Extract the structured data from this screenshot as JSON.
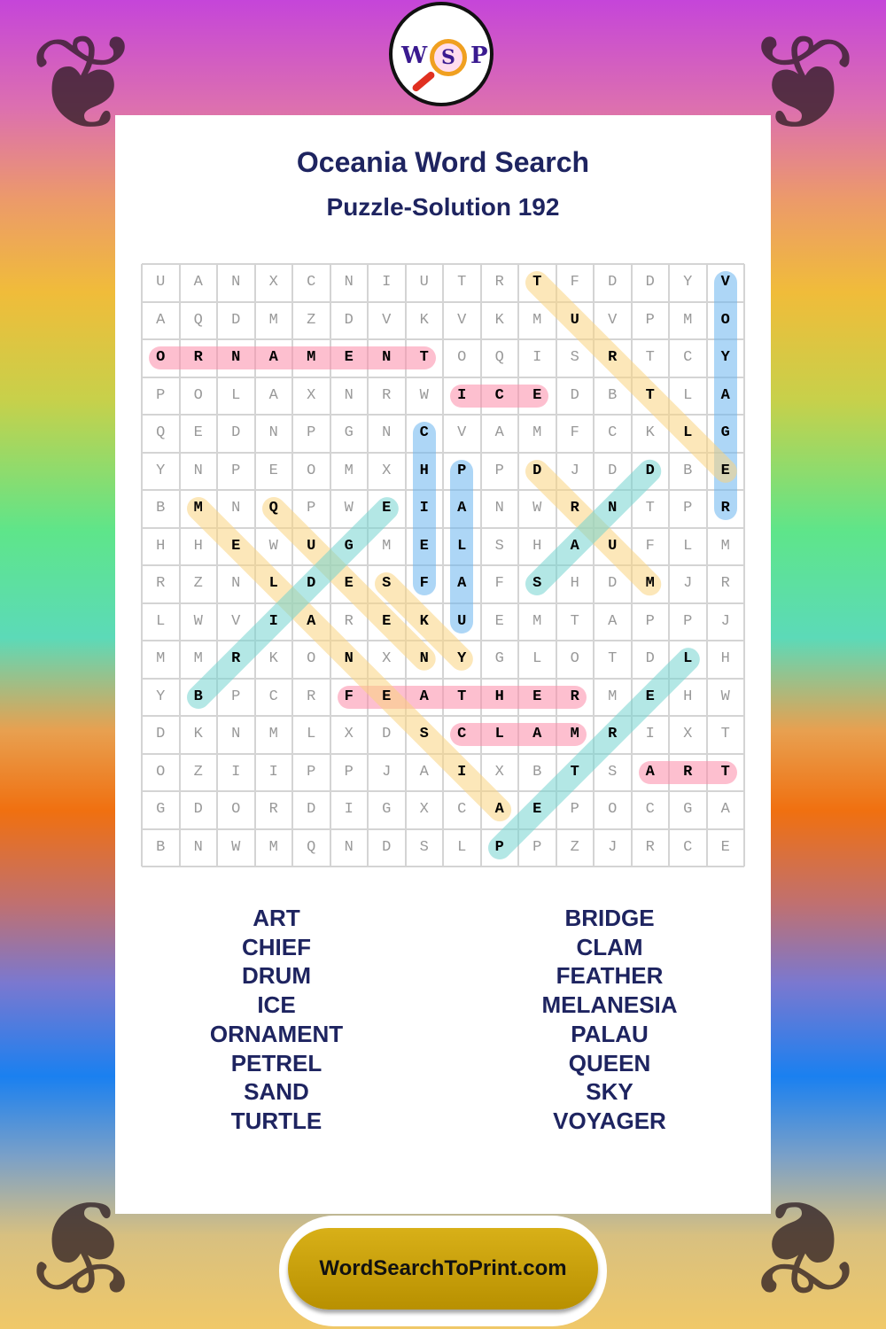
{
  "brand": {
    "logo_letters": [
      "W",
      "S",
      "P"
    ],
    "site": "WordSearchToPrint.com"
  },
  "title": "Oceania Word Search",
  "subtitle": "Puzzle-Solution 192",
  "grid": [
    "UANXCNIUTRTFDDYV",
    "AQDMZDVKVKMUVPMO",
    "ORNAMENTOQISRTCY",
    "POLAXNRWICEDBTLA",
    "QEDNPGNCVAMFCKLG",
    "YNPEOMXHPPDJDDBE",
    "BMNQPWEIANWRNTPR",
    "HHEWUGMELSHAUFLM",
    "RZNLDESFAFSHDMJR",
    "LWVIAREKUEMTAPPJ",
    "MMRKONXNYGLOTDLH",
    "YBPCRFEATHERMEHW",
    "DKNMLXDSCLAMRIXT",
    "OZIIPPJAIXBTSART",
    "GDORDIGXCAEPOCGA",
    "BNWMQNDSLPPZJRCE"
  ],
  "colors": {
    "pink": "#fb8aa8",
    "blue": "#6ab4ee",
    "yellow": "#fad480",
    "teal": "#74d4d0"
  },
  "solutions": [
    {
      "word": "ORNAMENT",
      "from": [
        2,
        0
      ],
      "to": [
        2,
        7
      ],
      "color": "pink"
    },
    {
      "word": "ICE",
      "from": [
        3,
        8
      ],
      "to": [
        3,
        10
      ],
      "color": "pink"
    },
    {
      "word": "FEATHER",
      "from": [
        11,
        5
      ],
      "to": [
        11,
        11
      ],
      "color": "pink"
    },
    {
      "word": "CLAM",
      "from": [
        12,
        8
      ],
      "to": [
        12,
        11
      ],
      "color": "pink"
    },
    {
      "word": "ART",
      "from": [
        13,
        13
      ],
      "to": [
        13,
        15
      ],
      "color": "pink"
    },
    {
      "word": "VOYAGER",
      "from": [
        0,
        15
      ],
      "to": [
        6,
        15
      ],
      "color": "blue"
    },
    {
      "word": "CHIEF",
      "from": [
        4,
        7
      ],
      "to": [
        8,
        7
      ],
      "color": "blue"
    },
    {
      "word": "PALAU",
      "from": [
        5,
        8
      ],
      "to": [
        9,
        8
      ],
      "color": "blue"
    },
    {
      "word": "TURTLE",
      "from": [
        0,
        10
      ],
      "to": [
        5,
        15
      ],
      "color": "yellow"
    },
    {
      "word": "DRUM",
      "from": [
        5,
        10
      ],
      "to": [
        8,
        13
      ],
      "color": "yellow"
    },
    {
      "word": "MELANESIA",
      "from": [
        6,
        1
      ],
      "to": [
        14,
        9
      ],
      "color": "yellow"
    },
    {
      "word": "QUEEN",
      "from": [
        6,
        3
      ],
      "to": [
        10,
        7
      ],
      "color": "yellow"
    },
    {
      "word": "SKY",
      "from": [
        8,
        6
      ],
      "to": [
        10,
        8
      ],
      "color": "yellow"
    },
    {
      "word": "BRIDGE",
      "from": [
        11,
        1
      ],
      "to": [
        6,
        6
      ],
      "color": "teal"
    },
    {
      "word": "SAND",
      "from": [
        8,
        10
      ],
      "to": [
        5,
        13
      ],
      "color": "teal"
    },
    {
      "word": "PETREL",
      "from": [
        15,
        9
      ],
      "to": [
        10,
        14
      ],
      "color": "teal"
    }
  ],
  "word_list": {
    "left": [
      "ART",
      "CHIEF",
      "DRUM",
      "ICE",
      "ORNAMENT",
      "PETREL",
      "SAND",
      "TURTLE"
    ],
    "right": [
      "BRIDGE",
      "CLAM",
      "FEATHER",
      "MELANESIA",
      "PALAU",
      "QUEEN",
      "SKY",
      "VOYAGER"
    ]
  }
}
